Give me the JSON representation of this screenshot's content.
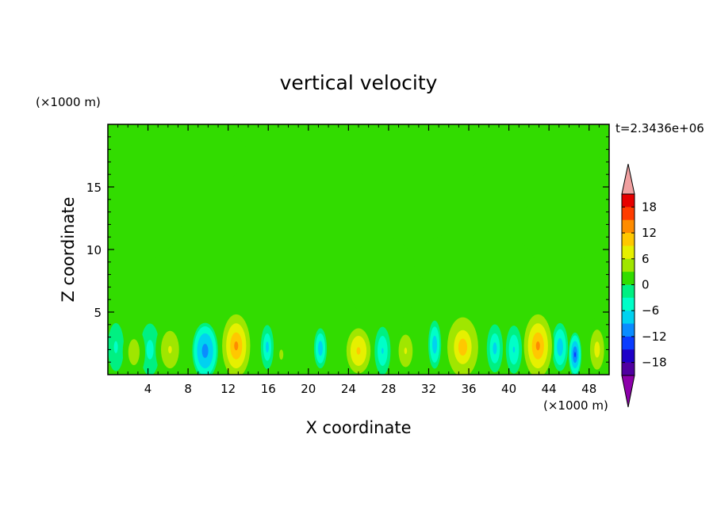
{
  "chart_data": {
    "type": "heatmap",
    "title": "vertical velocity",
    "xlabel": "X coordinate",
    "ylabel": "Z coordinate",
    "x_unit": "(×1000 m)",
    "y_unit": "(×1000 m)",
    "time_label": "t=2.3436e+06",
    "xlim": [
      0,
      50
    ],
    "ylim": [
      0,
      20
    ],
    "x_ticks": [
      "4",
      "8",
      "12",
      "16",
      "20",
      "24",
      "28",
      "32",
      "36",
      "40",
      "44",
      "48"
    ],
    "x_tick_values": [
      4,
      8,
      12,
      16,
      20,
      24,
      28,
      32,
      36,
      40,
      44,
      48
    ],
    "y_ticks": [
      "5",
      "10",
      "15"
    ],
    "y_tick_values": [
      5,
      10,
      15
    ],
    "colorbar": {
      "levels": [
        -21,
        -18,
        -15,
        -12,
        -9,
        -6,
        -3,
        0,
        3,
        6,
        9,
        12,
        15,
        18,
        21
      ],
      "tick_labels": [
        "18",
        "12",
        "6",
        "0",
        "−6",
        "−12",
        "−18"
      ],
      "tick_values": [
        18,
        12,
        6,
        0,
        -6,
        -12,
        -18
      ],
      "colors": [
        "#7a00a0",
        "#5000a0",
        "#1e00c8",
        "#0a3cff",
        "#0a8cff",
        "#00d2f0",
        "#00ffc8",
        "#00f082",
        "#32dc00",
        "#a0e600",
        "#e6f000",
        "#ffc800",
        "#ff8c00",
        "#ff3c00",
        "#e60000",
        "#f0a0a0"
      ],
      "under_color": "#8c00aa",
      "over_color": "#f0a0a0"
    },
    "background_value": 0,
    "updraft_cells": [
      {
        "x": 2.6,
        "z": 1.8,
        "w": 6,
        "sx": 0.7,
        "sz": 1.3
      },
      {
        "x": 6.2,
        "z": 2.0,
        "w": 7,
        "sx": 0.9,
        "sz": 1.5
      },
      {
        "x": 12.8,
        "z": 2.3,
        "w": 14,
        "sx": 1.0,
        "sz": 1.8
      },
      {
        "x": 17.3,
        "z": 1.6,
        "w": 4,
        "sx": 0.5,
        "sz": 1.0
      },
      {
        "x": 25.0,
        "z": 1.9,
        "w": 11,
        "sx": 1.0,
        "sz": 1.5
      },
      {
        "x": 29.7,
        "z": 1.9,
        "w": 7,
        "sx": 0.7,
        "sz": 1.3
      },
      {
        "x": 35.4,
        "z": 2.2,
        "w": 12,
        "sx": 1.1,
        "sz": 1.7
      },
      {
        "x": 42.9,
        "z": 2.3,
        "w": 15,
        "sx": 1.0,
        "sz": 1.8
      },
      {
        "x": 48.8,
        "z": 2.0,
        "w": 8,
        "sx": 0.7,
        "sz": 1.6
      }
    ],
    "downdraft_cells": [
      {
        "x": 0.8,
        "z": 2.2,
        "w": -4,
        "sx": 0.5,
        "sz": 1.2
      },
      {
        "x": 4.2,
        "z": 2.0,
        "w": -5,
        "sx": 0.6,
        "sz": 1.3
      },
      {
        "x": 9.7,
        "z": 1.9,
        "w": -13,
        "sx": 0.8,
        "sz": 1.4
      },
      {
        "x": 15.9,
        "z": 2.2,
        "w": -8,
        "sx": 0.4,
        "sz": 1.1
      },
      {
        "x": 21.2,
        "z": 2.1,
        "w": -10,
        "sx": 0.4,
        "sz": 1.0
      },
      {
        "x": 27.4,
        "z": 1.9,
        "w": -7,
        "sx": 0.5,
        "sz": 1.2
      },
      {
        "x": 32.6,
        "z": 2.4,
        "w": -9,
        "sx": 0.4,
        "sz": 1.2
      },
      {
        "x": 38.6,
        "z": 2.1,
        "w": -8,
        "sx": 0.5,
        "sz": 1.2
      },
      {
        "x": 40.5,
        "z": 2.0,
        "w": -7,
        "sx": 0.5,
        "sz": 1.2
      },
      {
        "x": 45.1,
        "z": 2.2,
        "w": -9,
        "sx": 0.5,
        "sz": 1.2
      },
      {
        "x": 46.6,
        "z": 1.6,
        "w": -14,
        "sx": 0.4,
        "sz": 1.1
      }
    ],
    "weak_updraft_regions": [
      {
        "x": 8.0,
        "z": 17.5,
        "w": 1.2,
        "sx": 6.0,
        "sz": 2.5
      },
      {
        "x": 31.0,
        "z": 17.5,
        "w": 1.2,
        "sx": 7.0,
        "sz": 2.5
      },
      {
        "x": 47.0,
        "z": 18.5,
        "w": 1.2,
        "sx": 3.0,
        "sz": 1.5
      },
      {
        "x": 14.0,
        "z": 12.5,
        "w": 1.2,
        "sx": 4.0,
        "sz": 3.0
      },
      {
        "x": 24.0,
        "z": 10.0,
        "w": 1.2,
        "sx": 3.0,
        "sz": 3.0
      },
      {
        "x": 27.5,
        "z": 7.5,
        "w": 1.2,
        "sx": 3.5,
        "sz": 3.5
      },
      {
        "x": 3.0,
        "z": 13.0,
        "w": 1.2,
        "sx": 4.5,
        "sz": 4.0
      },
      {
        "x": 45.0,
        "z": 11.5,
        "w": 1.2,
        "sx": 5.0,
        "sz": 2.5
      },
      {
        "x": 36.5,
        "z": 9.0,
        "w": 1.2,
        "sx": 6.0,
        "sz": 2.5
      }
    ]
  }
}
